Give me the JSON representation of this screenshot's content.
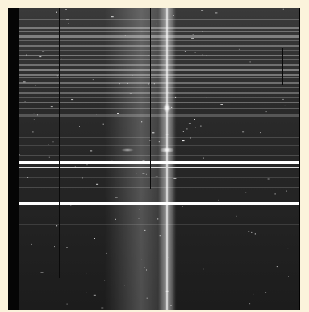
{
  "image": {
    "kind": "grayscale-astronomical-spectrum-frame",
    "palette": {
      "frame": "#fbf3dc",
      "background": "#000000",
      "sky_line": "#9a9a9a",
      "bright_line": "#ffffff",
      "continuum": "#b8b8b8"
    }
  }
}
